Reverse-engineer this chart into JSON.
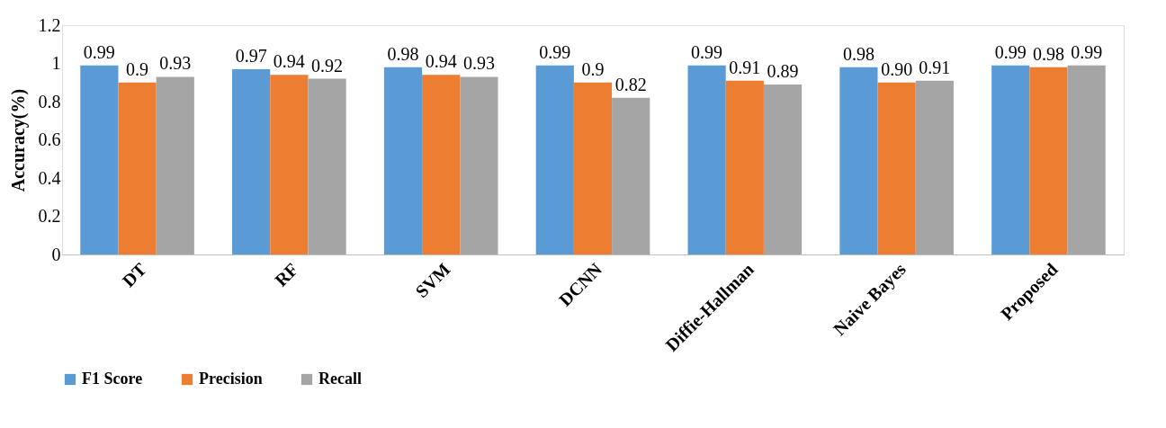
{
  "chart_data": {
    "type": "bar",
    "ylabel": "Accuracy(%)",
    "categories": [
      "DT",
      "RF",
      "SVM",
      "DCNN",
      "Diffie-Hallman",
      "Naive Bayes",
      "Proposed"
    ],
    "series": [
      {
        "name": "F1 Score",
        "color": "#5b9bd5",
        "values": [
          0.99,
          0.97,
          0.98,
          0.99,
          0.99,
          0.98,
          0.99
        ],
        "value_labels": [
          "0.99",
          "0.97",
          "0.98",
          "0.99",
          "0.99",
          "0.98",
          "0.99"
        ]
      },
      {
        "name": "Precision",
        "color": "#ed7d31",
        "values": [
          0.9,
          0.94,
          0.94,
          0.9,
          0.91,
          0.9,
          0.98
        ],
        "value_labels": [
          "0.9",
          "0.94",
          "0.94",
          "0.9",
          "0.91",
          "0.90",
          "0.98"
        ]
      },
      {
        "name": "Recall",
        "color": "#a5a5a5",
        "values": [
          0.93,
          0.92,
          0.93,
          0.82,
          0.89,
          0.91,
          0.99
        ],
        "value_labels": [
          "0.93",
          "0.92",
          "0.93",
          "0.82",
          "0.89",
          "0.91",
          "0.99"
        ]
      }
    ],
    "ylim": [
      0,
      1.2
    ],
    "yticks": [
      0,
      0.2,
      0.4,
      0.6,
      0.8,
      1,
      1.2
    ],
    "grid": false,
    "legend": "bottom"
  }
}
